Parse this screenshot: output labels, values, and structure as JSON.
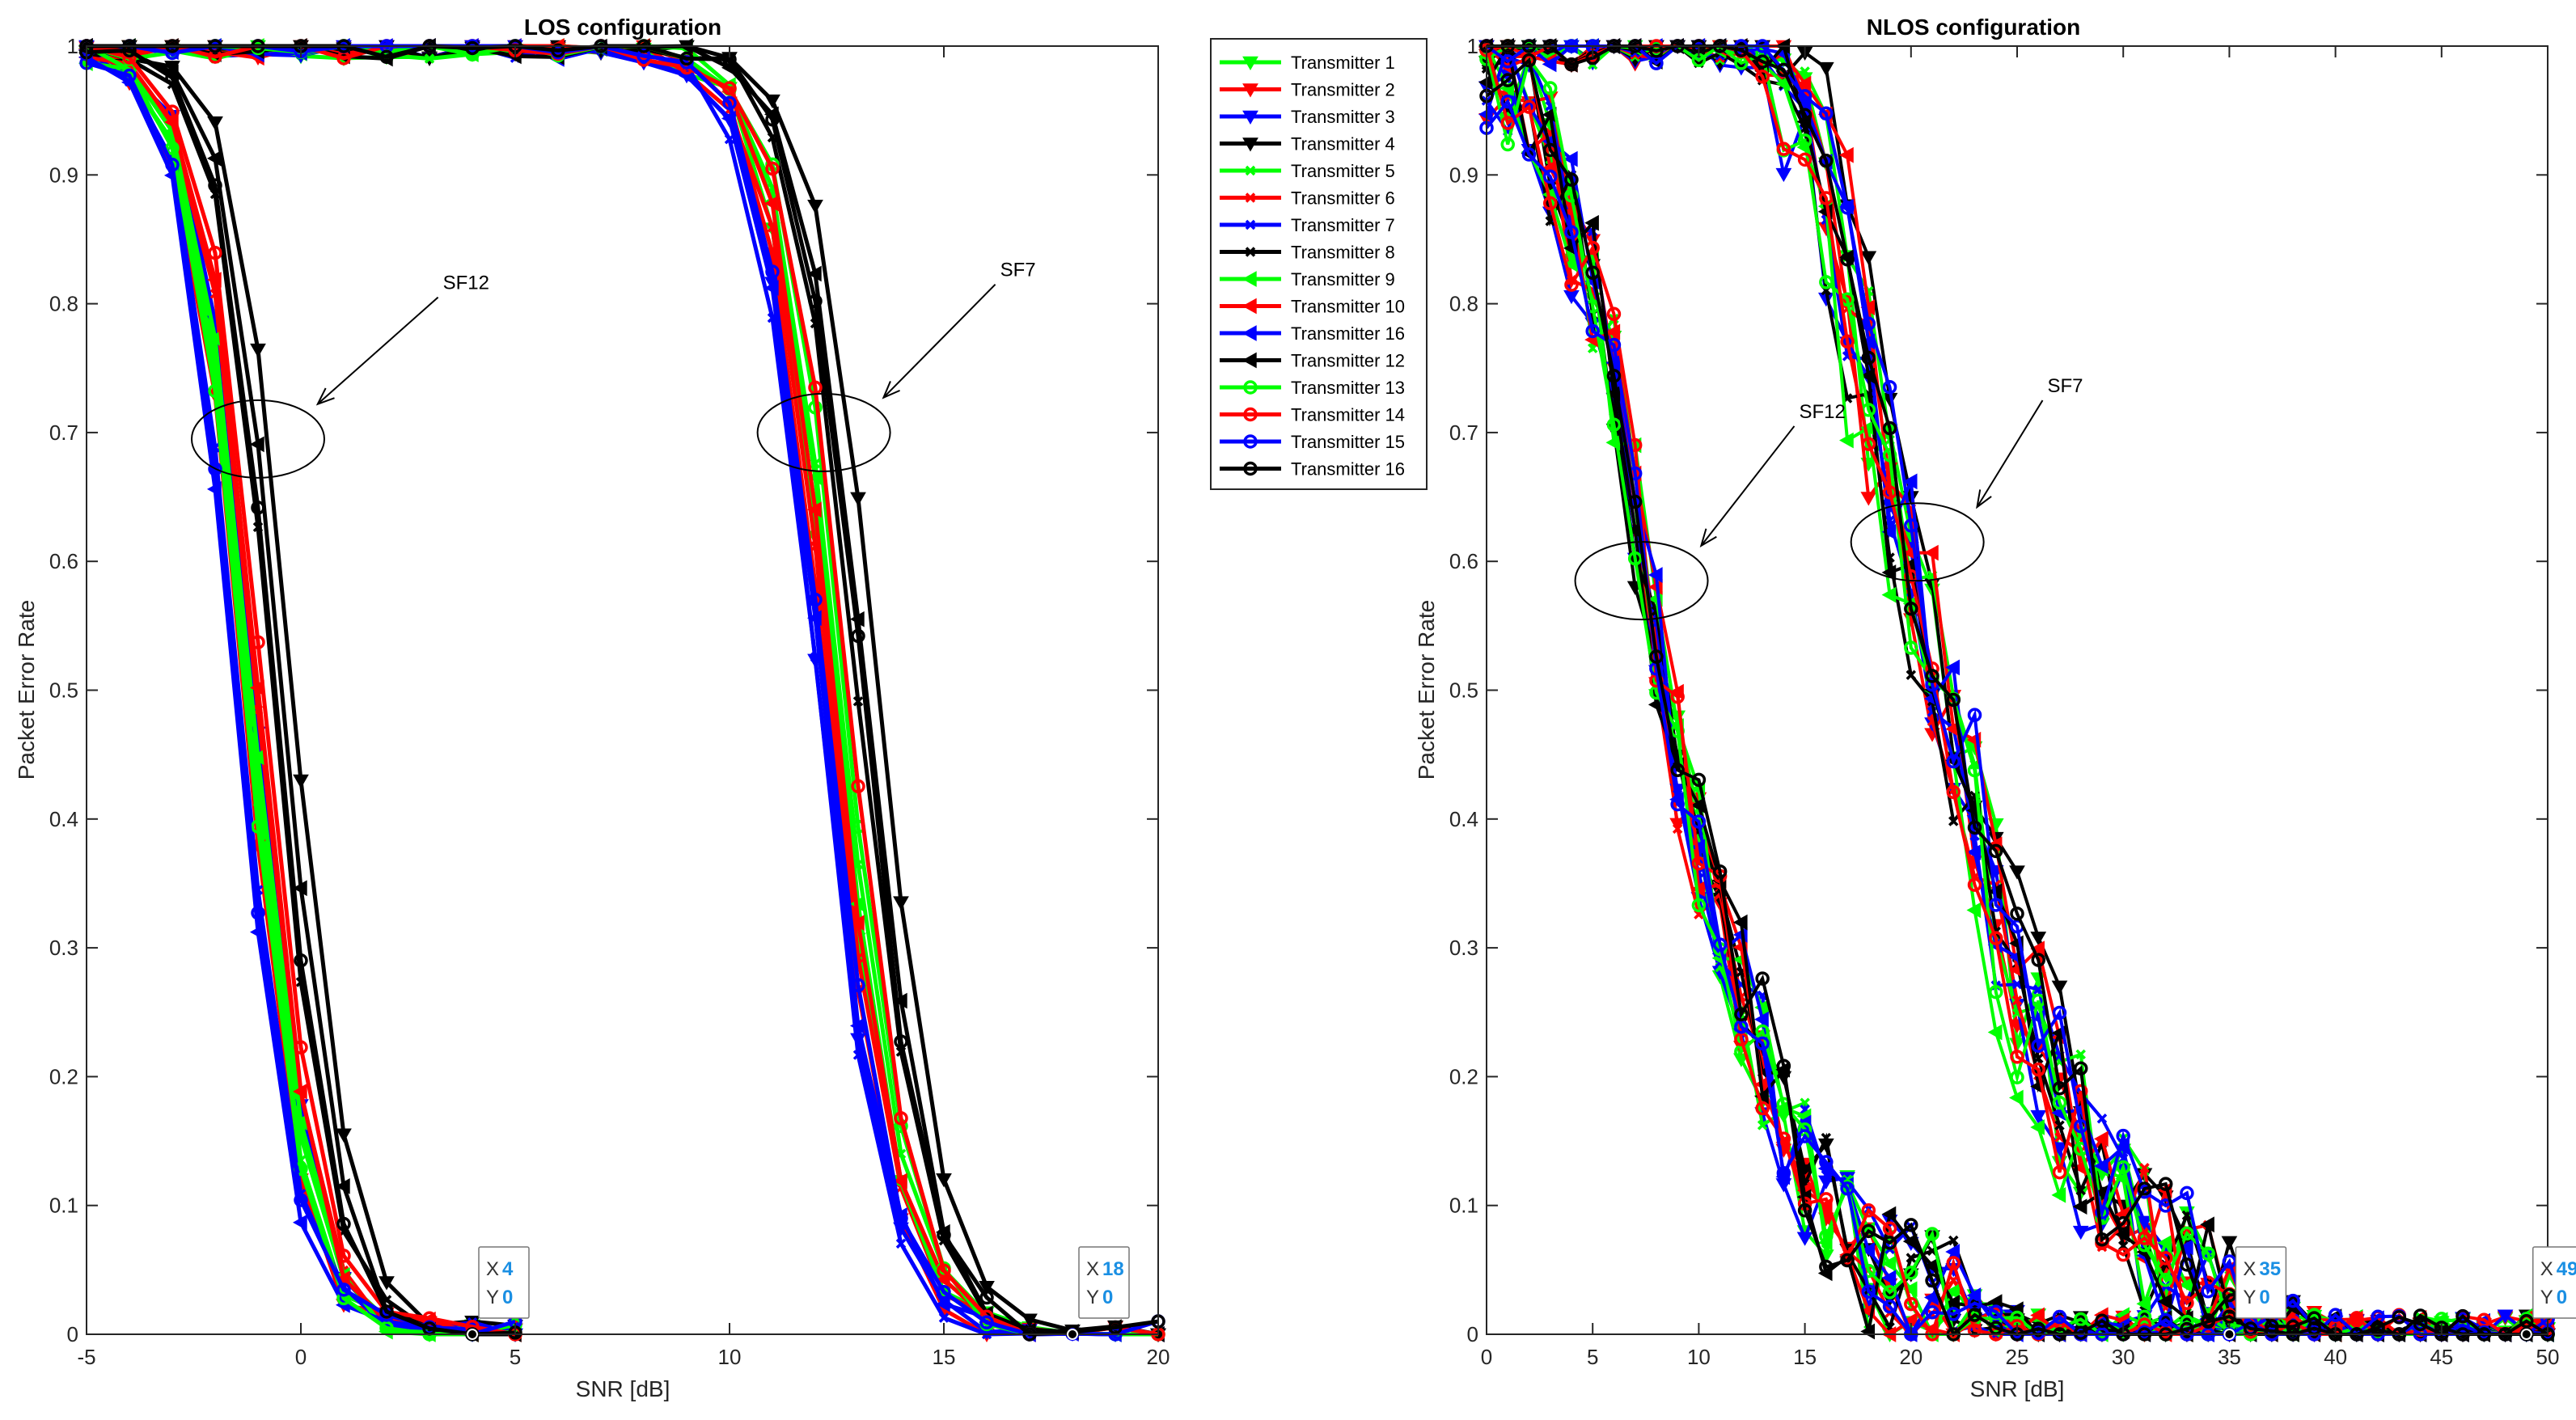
{
  "colors": {
    "Transmitter 1": "#00ff00",
    "Transmitter 2": "#ff0000",
    "Transmitter 3": "#0000ff",
    "Transmitter 4": "#000000",
    "Transmitter 5": "#00ff00",
    "Transmitter 6": "#ff0000",
    "Transmitter 7": "#0000ff",
    "Transmitter 8": "#000000",
    "Transmitter 9": "#00ff00",
    "Transmitter 10": "#ff0000",
    "Transmitter 16": "#0000ff",
    "Transmitter 12": "#000000",
    "Transmitter 13": "#00ff00",
    "Transmitter 14": "#ff0000",
    "Transmitter 15": "#0000ff",
    "Transmitter 16b": "#000000"
  },
  "legend": {
    "entries": [
      {
        "label": "Transmitter 1",
        "color": "#00ff00",
        "marker": "triangle-down"
      },
      {
        "label": "Transmitter 2",
        "color": "#ff0000",
        "marker": "triangle-down"
      },
      {
        "label": "Transmitter 3",
        "color": "#0000ff",
        "marker": "triangle-down"
      },
      {
        "label": "Transmitter 4",
        "color": "#000000",
        "marker": "triangle-down"
      },
      {
        "label": "Transmitter 5",
        "color": "#00ff00",
        "marker": "x"
      },
      {
        "label": "Transmitter 6",
        "color": "#ff0000",
        "marker": "x"
      },
      {
        "label": "Transmitter 7",
        "color": "#0000ff",
        "marker": "x"
      },
      {
        "label": "Transmitter 8",
        "color": "#000000",
        "marker": "x"
      },
      {
        "label": "Transmitter 9",
        "color": "#00ff00",
        "marker": "triangle-left"
      },
      {
        "label": "Transmitter 10",
        "color": "#ff0000",
        "marker": "triangle-left"
      },
      {
        "label": "Transmitter 16",
        "color": "#0000ff",
        "marker": "triangle-left"
      },
      {
        "label": "Transmitter 12",
        "color": "#000000",
        "marker": "triangle-left"
      },
      {
        "label": "Transmitter 13",
        "color": "#00ff00",
        "marker": "circle"
      },
      {
        "label": "Transmitter 14",
        "color": "#ff0000",
        "marker": "circle"
      },
      {
        "label": "Transmitter 15",
        "color": "#0000ff",
        "marker": "circle"
      },
      {
        "label": "Transmitter 16",
        "color": "#000000",
        "marker": "circle"
      }
    ]
  },
  "chart_data": [
    {
      "type": "line",
      "title": "LOS configuration",
      "xlabel": "SNR [dB]",
      "ylabel": "Packet Error Rate",
      "xlim": [
        -5,
        20
      ],
      "ylim": [
        0,
        1
      ],
      "xticks": [
        -5,
        0,
        5,
        10,
        15,
        20
      ],
      "yticks": [
        0,
        0.1,
        0.2,
        0.3,
        0.4,
        0.5,
        0.6,
        0.7,
        0.8,
        0.9,
        1
      ],
      "sf12_center_snr": [
        -1.2,
        -1.35,
        -1.1,
        -0.2,
        -1.25,
        -1.05,
        -1.45,
        -0.65,
        -1.15,
        -1.0,
        -1.55,
        -0.45,
        -1.3,
        -0.9,
        -1.5,
        -0.6
      ],
      "sf7_center_snr": [
        12.4,
        12.25,
        12.1,
        13.5,
        12.6,
        12.35,
        12.05,
        13.0,
        12.5,
        12.45,
        12.15,
        13.2,
        12.7,
        12.8,
        12.2,
        13.1
      ],
      "sf12_ref": {
        "snr": [
          -5,
          -2,
          -1.2,
          0,
          1,
          2,
          3,
          20
        ],
        "per": [
          1.0,
          0.88,
          0.5,
          0.13,
          0.02,
          0.0,
          0.0,
          0.0
        ]
      },
      "sf7_ref": {
        "snr": [
          -5,
          11,
          11.5,
          12.3,
          13.5,
          14.5,
          15.5,
          20
        ],
        "per": [
          1.0,
          1.0,
          0.9,
          0.55,
          0.17,
          0.04,
          0.0,
          0.0
        ]
      },
      "annotations": [
        {
          "text": "SF12",
          "x": -1,
          "y": 0.695,
          "label_x": 3.2,
          "label_y": 0.805
        },
        {
          "text": "SF7",
          "x": 12.2,
          "y": 0.7,
          "label_x": 16.2,
          "label_y": 0.815
        }
      ],
      "datatips": [
        {
          "x": "4",
          "y": "0",
          "anchor": [
            4,
            0
          ]
        },
        {
          "x": "18",
          "y": "0",
          "anchor": [
            18,
            0
          ]
        }
      ]
    },
    {
      "type": "line",
      "title": "NLOS configuration",
      "xlabel": "SNR [dB]",
      "ylabel": "Packet Error Rate",
      "xlim": [
        0,
        50
      ],
      "ylim": [
        0,
        1
      ],
      "xticks": [
        0,
        5,
        10,
        15,
        20,
        25,
        30,
        35,
        40,
        45,
        50
      ],
      "yticks": [
        0,
        0.1,
        0.2,
        0.3,
        0.4,
        0.5,
        0.6,
        0.7,
        0.8,
        0.9,
        1
      ],
      "sf12_ref": {
        "snr": [
          0,
          2,
          4,
          6,
          8,
          10,
          12,
          14,
          16,
          18,
          20,
          22,
          24,
          26,
          50
        ],
        "per": [
          0.99,
          0.95,
          0.85,
          0.72,
          0.5,
          0.36,
          0.25,
          0.15,
          0.09,
          0.05,
          0.03,
          0.02,
          0.01,
          0.0,
          0.0
        ]
      },
      "sf7_ref": {
        "snr": [
          0,
          12,
          14,
          16,
          17,
          19,
          21,
          23,
          25,
          27,
          29,
          31,
          33,
          35,
          38,
          40,
          50
        ],
        "per": [
          1.0,
          1.0,
          0.98,
          0.9,
          0.8,
          0.65,
          0.52,
          0.4,
          0.27,
          0.18,
          0.12,
          0.07,
          0.04,
          0.02,
          0.01,
          0.0,
          0.0
        ]
      },
      "annotations": [
        {
          "text": "SF12",
          "x": 7.3,
          "y": 0.585,
          "label_x": 14.5,
          "label_y": 0.705
        },
        {
          "text": "SF7",
          "x": 20.3,
          "y": 0.615,
          "label_x": 26.2,
          "label_y": 0.725
        }
      ],
      "datatips": [
        {
          "x": "35",
          "y": "0",
          "anchor": [
            35,
            0
          ]
        },
        {
          "x": "49",
          "y": "0",
          "anchor": [
            49,
            0
          ]
        }
      ]
    }
  ]
}
